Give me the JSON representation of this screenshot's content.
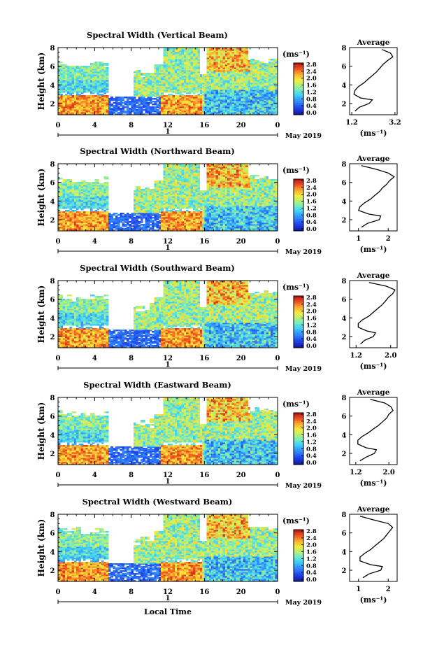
{
  "chart_data": [
    {
      "type": "heatmap",
      "title": "Spectral Width (Vertical Beam)",
      "ylabel": "Height (km)",
      "yticks": [
        "2",
        "4",
        "6",
        "8"
      ],
      "xticks": [
        "0",
        "4",
        "8",
        "12",
        "16",
        "20",
        "0"
      ],
      "day_label": "1",
      "month_label": "May 2019",
      "colorbar_unit": "(ms⁻¹)",
      "colorbar_ticks": [
        "0.0",
        "0.4",
        "0.8",
        "1.2",
        "1.6",
        "2.0",
        "2.4",
        "2.8"
      ],
      "xlim": [
        0,
        24
      ],
      "ylim": [
        0.8,
        8
      ],
      "clim": [
        0.0,
        3.0
      ],
      "profile": {
        "title": "Average",
        "xlabel": "(ms⁻¹)",
        "xticks": [
          "1.2",
          "3.2"
        ],
        "yticks": [
          "2",
          "4",
          "6",
          "8"
        ],
        "xlim": [
          1.1,
          3.3
        ],
        "heights": [
          1.2,
          1.6,
          2.0,
          2.4,
          2.6,
          3.0,
          3.4,
          3.8,
          4.2,
          4.6,
          5.0,
          5.4,
          5.8,
          6.2,
          6.6,
          7.0,
          7.4,
          7.8
        ],
        "values": [
          1.35,
          1.55,
          2.0,
          2.15,
          1.6,
          1.3,
          1.35,
          1.5,
          1.75,
          1.95,
          2.15,
          2.35,
          2.5,
          2.65,
          2.85,
          3.1,
          3.0,
          2.6
        ]
      }
    },
    {
      "type": "heatmap",
      "title": "Spectral Width (Northward Beam)",
      "ylabel": "Height (km)",
      "yticks": [
        "2",
        "4",
        "6",
        "8"
      ],
      "xticks": [
        "0",
        "4",
        "8",
        "12",
        "16",
        "20",
        "0"
      ],
      "day_label": "1",
      "month_label": "May 2019",
      "colorbar_unit": "(ms⁻¹)",
      "colorbar_ticks": [
        "0.0",
        "0.4",
        "0.8",
        "1.2",
        "1.6",
        "2.0",
        "2.4",
        "2.8"
      ],
      "xlim": [
        0,
        24
      ],
      "ylim": [
        0.8,
        8
      ],
      "clim": [
        0.0,
        3.0
      ],
      "profile": {
        "title": "Average",
        "xlabel": "(ms⁻¹)",
        "xticks": [
          "1",
          "2"
        ],
        "yticks": [
          "2",
          "4",
          "6",
          "8"
        ],
        "xlim": [
          0.7,
          2.3
        ],
        "heights": [
          1.2,
          1.6,
          2.0,
          2.4,
          2.6,
          3.0,
          3.4,
          3.8,
          4.2,
          4.6,
          5.0,
          5.4,
          5.8,
          6.2,
          6.6,
          7.0,
          7.4,
          7.8
        ],
        "values": [
          1.1,
          1.3,
          1.7,
          1.75,
          1.35,
          1.0,
          1.05,
          1.2,
          1.4,
          1.55,
          1.7,
          1.8,
          1.95,
          2.05,
          2.2,
          2.0,
          1.6,
          1.1
        ]
      }
    },
    {
      "type": "heatmap",
      "title": "Spectral Width (Southward Beam)",
      "ylabel": "Height (km)",
      "yticks": [
        "2",
        "4",
        "6",
        "8"
      ],
      "xticks": [
        "0",
        "4",
        "8",
        "12",
        "16",
        "20",
        "0"
      ],
      "day_label": "1",
      "month_label": "May 2019",
      "colorbar_unit": "(ms⁻¹)",
      "colorbar_ticks": [
        "0.0",
        "0.4",
        "0.8",
        "1.2",
        "1.6",
        "2.0",
        "2.4",
        "2.8"
      ],
      "xlim": [
        0,
        24
      ],
      "ylim": [
        0.8,
        8
      ],
      "clim": [
        0.0,
        3.0
      ],
      "profile": {
        "title": "Average",
        "xlabel": "(ms⁻¹)",
        "xticks": [
          "1.2",
          "2.0"
        ],
        "yticks": [
          "2",
          "4",
          "6",
          "8"
        ],
        "xlim": [
          1.05,
          2.15
        ],
        "heights": [
          1.2,
          1.6,
          2.0,
          2.4,
          2.6,
          3.0,
          3.4,
          3.8,
          4.2,
          4.6,
          5.0,
          5.4,
          5.8,
          6.2,
          6.6,
          7.0,
          7.4,
          7.8
        ],
        "values": [
          1.3,
          1.4,
          1.6,
          1.65,
          1.45,
          1.25,
          1.25,
          1.35,
          1.5,
          1.6,
          1.7,
          1.8,
          1.88,
          1.95,
          2.05,
          2.1,
          1.9,
          1.5
        ]
      }
    },
    {
      "type": "heatmap",
      "title": "Spectral Width (Eastward Beam)",
      "ylabel": "Height (km)",
      "yticks": [
        "2",
        "4",
        "6",
        "8"
      ],
      "xticks": [
        "0",
        "4",
        "8",
        "12",
        "16",
        "20",
        "0"
      ],
      "day_label": "1",
      "month_label": "May 2019",
      "colorbar_unit": "(ms⁻¹)",
      "colorbar_ticks": [
        "0.0",
        "0.4",
        "0.8",
        "1.2",
        "1.6",
        "2.0",
        "2.4",
        "2.8"
      ],
      "xlim": [
        0,
        24
      ],
      "ylim": [
        0.8,
        8
      ],
      "clim": [
        0.0,
        3.0
      ],
      "profile": {
        "title": "Average",
        "xlabel": "(ms⁻¹)",
        "xticks": [
          "1.2",
          "2.0"
        ],
        "yticks": [
          "2",
          "4",
          "6",
          "8"
        ],
        "xlim": [
          1.05,
          2.2
        ],
        "heights": [
          1.2,
          1.6,
          2.0,
          2.4,
          2.6,
          3.0,
          3.4,
          3.8,
          4.2,
          4.6,
          5.0,
          5.4,
          5.8,
          6.2,
          6.6,
          7.0,
          7.4,
          7.8
        ],
        "values": [
          1.3,
          1.45,
          1.65,
          1.7,
          1.45,
          1.25,
          1.25,
          1.35,
          1.5,
          1.62,
          1.75,
          1.85,
          1.95,
          2.0,
          2.1,
          2.05,
          1.9,
          1.55
        ]
      }
    },
    {
      "type": "heatmap",
      "title": "Spectral Width (Westward Beam)",
      "ylabel": "Height (km)",
      "yticks": [
        "2",
        "4",
        "6",
        "8"
      ],
      "xticks": [
        "0",
        "4",
        "8",
        "12",
        "16",
        "20",
        "0"
      ],
      "day_label": "1",
      "month_label": "May 2019",
      "colorbar_unit": "(ms⁻¹)",
      "colorbar_ticks": [
        "0.0",
        "0.4",
        "0.8",
        "1.2",
        "1.6",
        "2.0",
        "2.4",
        "2.8"
      ],
      "xlim": [
        0,
        24
      ],
      "ylim": [
        0.8,
        8
      ],
      "clim": [
        0.0,
        3.0
      ],
      "xlabel": "Local Time",
      "profile": {
        "title": "Average",
        "xlabel": "(ms⁻¹)",
        "xticks": [
          "1",
          "2"
        ],
        "yticks": [
          "2",
          "4",
          "6",
          "8"
        ],
        "xlim": [
          0.7,
          2.3
        ],
        "heights": [
          1.2,
          1.6,
          2.0,
          2.4,
          2.6,
          3.0,
          3.4,
          3.8,
          4.2,
          4.6,
          5.0,
          5.4,
          5.8,
          6.2,
          6.6,
          7.0,
          7.4,
          7.8
        ],
        "values": [
          1.15,
          1.35,
          1.75,
          1.8,
          1.4,
          1.05,
          1.05,
          1.2,
          1.4,
          1.55,
          1.7,
          1.85,
          1.95,
          2.05,
          2.15,
          2.0,
          1.5,
          1.05
        ]
      }
    }
  ]
}
